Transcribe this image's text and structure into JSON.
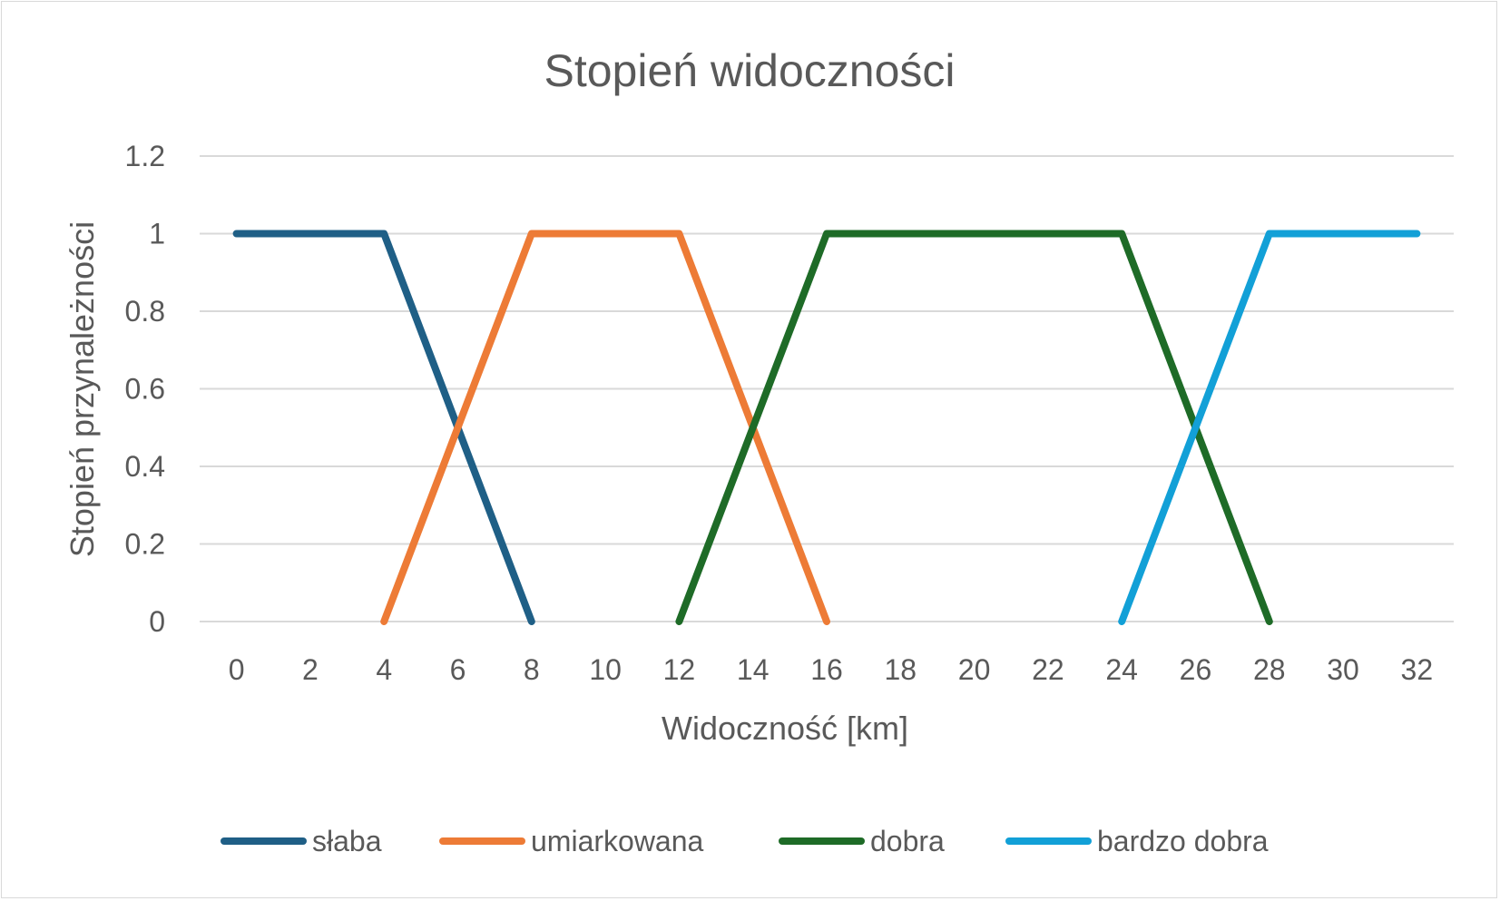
{
  "chart_data": {
    "type": "line",
    "title": "Stopień widoczności",
    "xlabel": "Widoczność [km]",
    "ylabel": "Stopień przynależności",
    "x": [
      0,
      2,
      4,
      6,
      8,
      10,
      12,
      14,
      16,
      18,
      20,
      22,
      24,
      26,
      28,
      30,
      32
    ],
    "x_tick_labels": [
      "0",
      "2",
      "4",
      "6",
      "8",
      "10",
      "12",
      "14",
      "16",
      "18",
      "20",
      "22",
      "24",
      "26",
      "28",
      "30",
      "32"
    ],
    "y_tick_labels": [
      "0",
      "0.2",
      "0.4",
      "0.6",
      "0.8",
      "1",
      "1.2"
    ],
    "ylim": [
      0,
      1.2
    ],
    "grid": true,
    "legend_position": "bottom",
    "series": [
      {
        "name": "słaba",
        "color": "#1f5f86",
        "points": [
          [
            0,
            1
          ],
          [
            4,
            1
          ],
          [
            8,
            0
          ]
        ]
      },
      {
        "name": "umiarkowana",
        "color": "#ed7b36",
        "points": [
          [
            4,
            0
          ],
          [
            8,
            1
          ],
          [
            12,
            1
          ],
          [
            16,
            0
          ]
        ]
      },
      {
        "name": "dobra",
        "color": "#1e6b27",
        "points": [
          [
            12,
            0
          ],
          [
            16,
            1
          ],
          [
            24,
            1
          ],
          [
            28,
            0
          ]
        ]
      },
      {
        "name": "bardzo dobra",
        "color": "#12a0d7",
        "points": [
          [
            24,
            0
          ],
          [
            28,
            1
          ],
          [
            32,
            1
          ]
        ]
      }
    ]
  }
}
